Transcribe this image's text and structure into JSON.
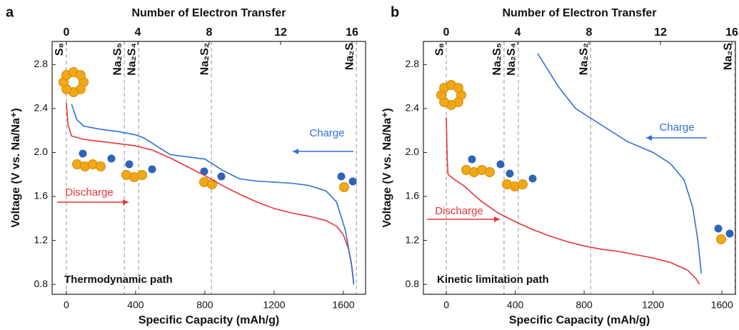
{
  "chart_data": [
    {
      "type": "line",
      "panel_label": "a",
      "annotation": "Thermodynamic path",
      "x_label": "Specific Capacity (mAh/g)",
      "y_label": "Voltage (V vs. Na/Na⁺)",
      "x2_label": "Number of Electron Transfer",
      "xlim": [
        -82,
        1728
      ],
      "xticks": [
        0,
        400,
        800,
        1200,
        1600
      ],
      "x2lim": [
        -0.8,
        16.76
      ],
      "x2ticks": [
        0,
        4,
        8,
        12,
        16
      ],
      "ylim": [
        0.71,
        3.01
      ],
      "yticks": [
        0.8,
        1.2,
        1.6,
        {
          "value": 2,
          "label": "2.0"
        },
        2.4,
        2.8
      ],
      "phases": {
        "labels": [
          "S₈",
          "Na₂S₅",
          "Na₂S₄",
          "Na₂S₂",
          "Na₂S"
        ],
        "x": [
          0,
          335,
          418,
          838,
          1675
        ]
      },
      "series": [
        {
          "name": "Discharge",
          "color": "#e8353a",
          "x": [
            0,
            10,
            30,
            100,
            200,
            300,
            400,
            500,
            600,
            700,
            800,
            900,
            1000,
            1100,
            1200,
            1300,
            1400,
            1500,
            1560,
            1600,
            1630,
            1650,
            1660
          ],
          "values": [
            2.45,
            2.25,
            2.15,
            2.12,
            2.1,
            2.08,
            2.06,
            2.02,
            1.95,
            1.87,
            1.79,
            1.7,
            1.62,
            1.55,
            1.49,
            1.45,
            1.42,
            1.38,
            1.33,
            1.25,
            1.12,
            0.95,
            0.8
          ]
        },
        {
          "name": "Charge",
          "color": "#2f6fd6",
          "x": [
            30,
            60,
            100,
            200,
            300,
            400,
            450,
            500,
            600,
            700,
            800,
            900,
            1000,
            1100,
            1200,
            1300,
            1400,
            1500,
            1560,
            1610,
            1645,
            1660
          ],
          "values": [
            2.44,
            2.3,
            2.24,
            2.21,
            2.19,
            2.16,
            2.13,
            2.08,
            1.98,
            1.96,
            1.94,
            1.84,
            1.76,
            1.74,
            1.73,
            1.72,
            1.7,
            1.65,
            1.55,
            1.3,
            1.0,
            0.8
          ]
        }
      ]
    },
    {
      "type": "line",
      "panel_label": "b",
      "annotation": "Kinetic limitation path",
      "x_label": "Specific Capacity (mAh/g)",
      "y_label": "Voltage (V vs. Na/Na⁺)",
      "x2_label": "Number of Electron Transfer",
      "xlim": [
        -133,
        1678
      ],
      "xticks": [
        0,
        400,
        800,
        1200,
        1600
      ],
      "x2lim": [
        -1.28,
        16.2
      ],
      "x2ticks": [
        0,
        4,
        8,
        12,
        16
      ],
      "ylim": [
        0.71,
        3.01
      ],
      "yticks": [
        0.8,
        1.2,
        1.6,
        {
          "value": 2,
          "label": "2.0"
        },
        2.4,
        2.8
      ],
      "phases": {
        "labels": [
          "S₈",
          "Na₂S₅",
          "Na₂S₄",
          "Na₂S₂",
          "Na₂S"
        ],
        "x": [
          0,
          335,
          418,
          838,
          1675
        ]
      },
      "series": [
        {
          "name": "Discharge",
          "color": "#e8353a",
          "x": [
            0,
            5,
            10,
            50,
            100,
            200,
            300,
            400,
            500,
            600,
            700,
            800,
            900,
            1000,
            1100,
            1200,
            1300,
            1400,
            1450,
            1470
          ],
          "values": [
            2.32,
            1.95,
            1.8,
            1.75,
            1.7,
            1.56,
            1.45,
            1.37,
            1.3,
            1.24,
            1.19,
            1.15,
            1.12,
            1.1,
            1.07,
            1.04,
            1.0,
            0.93,
            0.85,
            0.8
          ]
        },
        {
          "name": "Charge",
          "color": "#2f6fd6",
          "x": [
            530,
            650,
            750,
            900,
            1050,
            1200,
            1300,
            1380,
            1430,
            1460,
            1480
          ],
          "values": [
            2.9,
            2.6,
            2.4,
            2.25,
            2.1,
            2.0,
            1.9,
            1.75,
            1.5,
            1.2,
            0.9
          ]
        }
      ]
    }
  ]
}
